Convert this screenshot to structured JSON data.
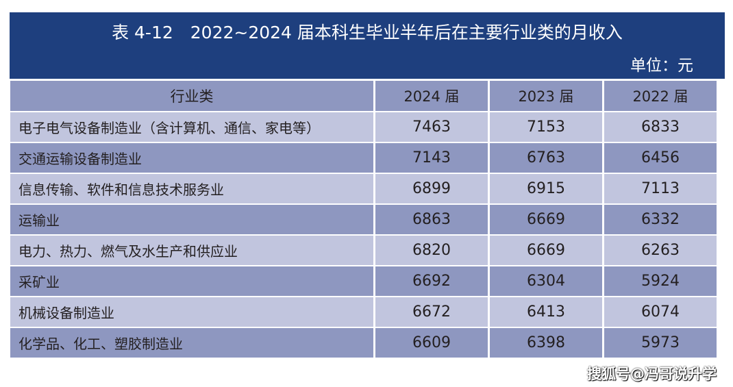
{
  "title": "表 4-12　2022~2024 届本科生毕业半年后在主要行业类的月收入",
  "unit": "单位：元",
  "columns": [
    "行业类",
    "2024 届",
    "2023 届",
    "2022 届"
  ],
  "rows": [
    [
      "电子电气设备制造业（含计算机、通信、家电等）",
      "7463",
      "7153",
      "6833"
    ],
    [
      "交通运输设备制造业",
      "7143",
      "6763",
      "6456"
    ],
    [
      "信息传输、软件和信息技术服务业",
      "6899",
      "6915",
      "7113"
    ],
    [
      "运输业",
      "6863",
      "6669",
      "6332"
    ],
    [
      "电力、热力、燃气及水生产和供应业",
      "6820",
      "6669",
      "6263"
    ],
    [
      "采矿业",
      "6692",
      "6304",
      "5924"
    ],
    [
      "机械设备制造业",
      "6672",
      "6413",
      "6074"
    ],
    [
      "化学品、化工、塑胶制造业",
      "6609",
      "6398",
      "5973"
    ]
  ],
  "watermark": "搜狐号@冯哥说升学",
  "colors": {
    "banner": "#1e3f7e",
    "header_row": "#8e97c0",
    "row_light": "#c1c5de",
    "row_dark": "#8e97c0"
  }
}
